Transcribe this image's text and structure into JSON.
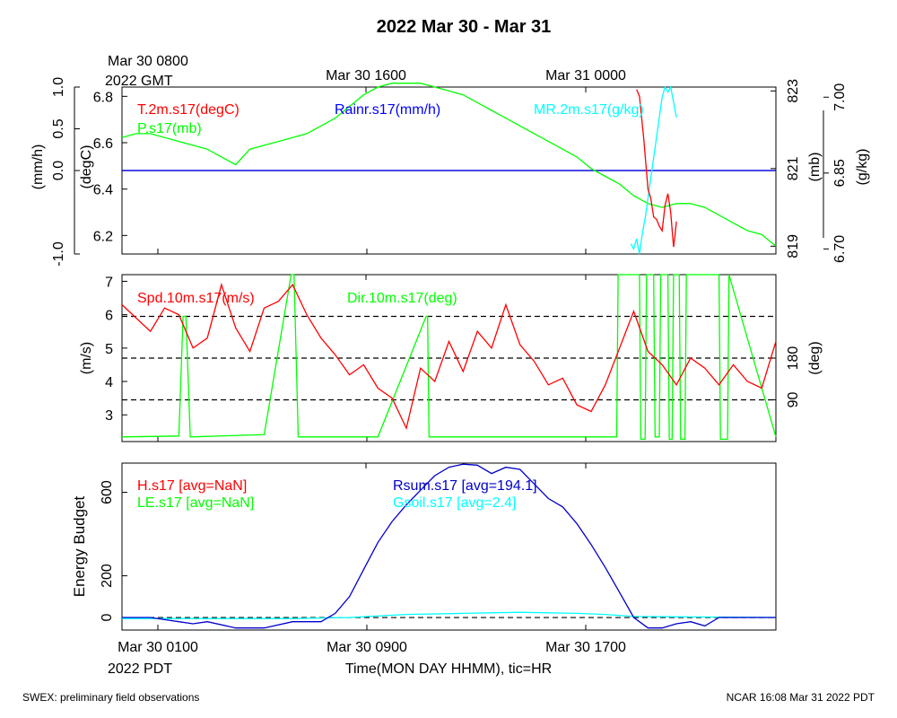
{
  "page": {
    "title": "2022 Mar 30 - Mar 31",
    "footer_left": "SWEX: preliminary field observations",
    "footer_right": "NCAR 16:08 Mar 31 2022 PDT",
    "top_axis": {
      "start_label": "Mar 30 0800",
      "start_sublabel": "2022 GMT",
      "labels": [
        "Mar 30 1600",
        "Mar 31 0000"
      ]
    },
    "bottom_axis": {
      "labels": [
        "Mar 30 0100",
        "Mar 30 0900",
        "Mar 30 1700"
      ],
      "start_sublabel": "2022 PDT",
      "xlabel": "Time(MON DAY HHMM), tic=HR"
    }
  },
  "colors": {
    "red": "#ff0000",
    "green": "#00ff00",
    "blue": "#0000ff",
    "cyan": "#00ffff",
    "dark_blue": "#0000cc",
    "black": "#000000"
  },
  "chart_data": [
    {
      "type": "line",
      "panel": "top",
      "x_unit": "hours since Mar 30 0100 PDT",
      "xlim": [
        0,
        23
      ],
      "axes": [
        {
          "side": "left-outer",
          "label": "(mm/h)",
          "lim": [
            -1.0,
            1.0
          ],
          "ticks": [
            "-1.0",
            "0.0",
            "0.5",
            "1.0"
          ],
          "tick_values": [
            -1.0,
            0.0,
            0.5,
            1.0
          ]
        },
        {
          "side": "left-inner",
          "label": "(degC)",
          "lim": [
            6.12,
            6.84
          ],
          "ticks": [
            "6.2",
            "6.4",
            "6.6",
            "6.8"
          ],
          "tick_values": [
            6.2,
            6.4,
            6.6,
            6.8
          ]
        },
        {
          "side": "right-inner",
          "label": "(mb)",
          "lim": [
            818.8,
            823.1
          ],
          "ticks": [
            "819",
            "821",
            "823"
          ],
          "tick_values": [
            819,
            821,
            823
          ]
        },
        {
          "side": "right-outer",
          "label": "(g/kg)",
          "lim": [
            6.69,
            7.02
          ],
          "ticks": [
            "6.70",
            "6.85",
            "7.00"
          ],
          "tick_values": [
            6.7,
            6.85,
            7.0
          ]
        }
      ],
      "series": [
        {
          "name": "T.2m.s17(degC)",
          "color": "red",
          "axis": "left-inner",
          "x": [
            18.1,
            18.2,
            18.35,
            18.5,
            18.6,
            18.7,
            18.8,
            18.9,
            19.0,
            19.1,
            19.2,
            19.3,
            19.4,
            19.45,
            19.5
          ],
          "y": [
            6.83,
            6.8,
            6.62,
            6.4,
            6.36,
            6.28,
            6.27,
            6.24,
            6.22,
            6.33,
            6.38,
            6.3,
            6.15,
            6.2,
            6.26
          ]
        },
        {
          "name": "Rainr.s17(mm/h)",
          "color": "blue",
          "axis": "left-outer",
          "x": [
            0,
            23
          ],
          "y": [
            0,
            0
          ]
        },
        {
          "name": "MR.2m.s17(g/kg)",
          "color": "cyan",
          "axis": "right-outer",
          "x": [
            17.9,
            18.0,
            18.1,
            18.2,
            18.3,
            18.4,
            18.5,
            18.6,
            18.7,
            18.8,
            18.9,
            19.0,
            19.1,
            19.2,
            19.3,
            19.4,
            19.5
          ],
          "y": [
            6.71,
            6.7,
            6.72,
            6.69,
            6.73,
            6.76,
            6.8,
            6.84,
            6.88,
            6.92,
            6.96,
            7.0,
            7.02,
            7.01,
            7.02,
            6.99,
            6.96
          ]
        },
        {
          "name": "P.s17(mb)",
          "color": "green",
          "axis": "right-inner",
          "x": [
            0,
            0.5,
            1,
            1.5,
            2,
            2.5,
            3,
            3.5,
            4,
            4.5,
            5,
            5.5,
            6,
            6.5,
            7,
            7.5,
            8,
            8.5,
            9,
            9.5,
            10,
            10.5,
            11,
            11.5,
            12,
            12.5,
            13,
            13.5,
            14,
            14.5,
            15,
            15.5,
            16,
            16.5,
            17,
            17.5,
            18,
            18.5,
            19,
            19.5,
            20,
            20.5,
            21,
            21.5,
            22,
            22.5,
            23
          ],
          "y": [
            821.8,
            821.9,
            821.9,
            821.8,
            821.7,
            821.6,
            821.5,
            821.3,
            821.1,
            821.5,
            821.6,
            821.7,
            821.8,
            821.9,
            822.1,
            822.3,
            822.6,
            822.9,
            823.1,
            823.2,
            823.2,
            823.2,
            823.1,
            823.0,
            822.9,
            822.7,
            822.5,
            822.3,
            822.1,
            821.9,
            821.7,
            821.5,
            821.3,
            821.0,
            820.8,
            820.6,
            820.3,
            820.1,
            820.0,
            820.1,
            820.1,
            820.0,
            819.8,
            819.6,
            819.4,
            819.3,
            819.0
          ]
        }
      ]
    },
    {
      "type": "line",
      "panel": "middle",
      "x_unit": "hours since Mar 30 0100 PDT",
      "xlim": [
        0,
        23
      ],
      "axes": [
        {
          "side": "left",
          "label": "(m/s)",
          "lim": [
            2.2,
            7.2
          ],
          "ticks": [
            "3",
            "4",
            "5",
            "6",
            "7"
          ],
          "tick_values": [
            3,
            4,
            5,
            6,
            7
          ]
        },
        {
          "side": "right",
          "label": "(deg)",
          "lim": [
            0,
            360
          ],
          "ticks": [
            "90",
            "180"
          ],
          "tick_values": [
            90,
            180
          ]
        }
      ],
      "reference_lines_deg": [
        90,
        180,
        270
      ],
      "series": [
        {
          "name": "Spd.10m.s17(m/s)",
          "color": "red",
          "axis": "left",
          "x": [
            0,
            0.5,
            1,
            1.5,
            2,
            2.5,
            3,
            3.5,
            4,
            4.5,
            5,
            5.5,
            6,
            6.5,
            7,
            7.5,
            8,
            8.5,
            9,
            9.5,
            10,
            10.5,
            11,
            11.5,
            12,
            12.5,
            13,
            13.5,
            14,
            14.5,
            15,
            15.5,
            16,
            16.5,
            17,
            17.5,
            18,
            18.5,
            19,
            19.5,
            20,
            20.5,
            21,
            21.5,
            22,
            22.5,
            23
          ],
          "y": [
            6.3,
            5.9,
            5.5,
            6.2,
            6.0,
            5.0,
            5.3,
            6.9,
            5.6,
            4.9,
            6.2,
            6.4,
            6.9,
            6.0,
            5.3,
            4.8,
            4.2,
            4.5,
            3.8,
            3.5,
            2.6,
            4.4,
            4.0,
            5.2,
            4.3,
            5.5,
            5.0,
            6.3,
            5.1,
            4.6,
            3.9,
            4.1,
            3.3,
            3.1,
            3.9,
            5.0,
            6.1,
            4.9,
            4.5,
            3.9,
            4.7,
            4.4,
            3.9,
            4.5,
            4.0,
            3.8,
            5.2
          ]
        },
        {
          "name": "Dir.10m.s17(deg)",
          "color": "green",
          "axis": "right",
          "x": [
            0,
            2,
            2.15,
            2.25,
            2.4,
            5,
            5.95,
            6.05,
            6.2,
            9,
            10.7,
            10.75,
            10.8,
            10.85,
            17.4,
            17.45,
            17.6,
            18.2,
            18.25,
            18.4,
            18.45,
            18.7,
            18.75,
            18.9,
            18.95,
            19.2,
            19.25,
            19.35,
            19.4,
            19.6,
            19.65,
            19.8,
            19.85,
            21.0,
            21.05,
            21.3,
            21.35,
            23
          ],
          "y": [
            10,
            12,
            270,
            270,
            10,
            15,
            360,
            360,
            10,
            10,
            270,
            270,
            10,
            10,
            10,
            360,
            360,
            360,
            5,
            5,
            360,
            360,
            10,
            10,
            360,
            360,
            5,
            5,
            360,
            360,
            5,
            5,
            360,
            360,
            5,
            5,
            360,
            10
          ]
        }
      ]
    },
    {
      "type": "line",
      "panel": "bottom",
      "x_unit": "hours since Mar 30 0100 PDT",
      "xlim": [
        0,
        23
      ],
      "ylabel": "Energy Budget",
      "ylim": [
        -60,
        740
      ],
      "yticks": [
        "0",
        "200",
        "600"
      ],
      "ytick_values": [
        0,
        200,
        600
      ],
      "series": [
        {
          "name": "H.s17 [avg=NaN]",
          "color": "red",
          "x": [],
          "y": []
        },
        {
          "name": "LE.s17 [avg=NaN]",
          "color": "green",
          "x": [],
          "y": []
        },
        {
          "name": "Rsum.s17 [avg=194.1]",
          "color": "dark_blue",
          "x": [
            0,
            1,
            1.5,
            2,
            2.5,
            3,
            4,
            5,
            6,
            6.5,
            7,
            7.5,
            8,
            8.5,
            9,
            9.5,
            10,
            10.5,
            11,
            11.5,
            12,
            12.5,
            13,
            13.5,
            14,
            14.5,
            15,
            15.5,
            16,
            16.5,
            17,
            17.5,
            18,
            18.5,
            19,
            19.5,
            20,
            20.5,
            21,
            21.5,
            22,
            23
          ],
          "y": [
            0,
            0,
            -10,
            -20,
            -30,
            -20,
            -50,
            -50,
            -20,
            -20,
            -20,
            20,
            100,
            230,
            360,
            460,
            540,
            610,
            680,
            720,
            735,
            730,
            690,
            720,
            710,
            640,
            570,
            530,
            450,
            350,
            240,
            120,
            0,
            -50,
            -50,
            -30,
            -20,
            -40,
            0,
            0,
            0,
            0
          ]
        },
        {
          "name": "Gsoil.s17 [avg=2.4]",
          "color": "cyan",
          "x": [
            0,
            6,
            8,
            10,
            12,
            14,
            16,
            17,
            18,
            23
          ],
          "y": [
            -5,
            -5,
            0,
            15,
            20,
            25,
            20,
            15,
            5,
            0
          ]
        }
      ]
    }
  ]
}
